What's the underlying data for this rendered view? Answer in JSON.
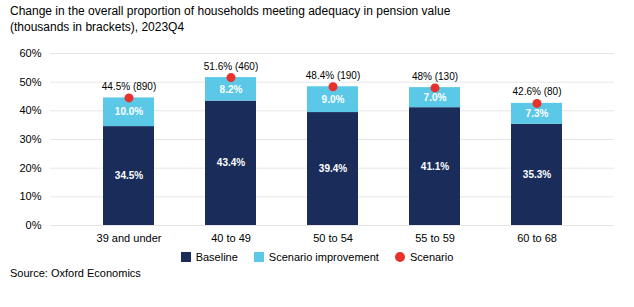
{
  "chart_data": {
    "type": "bar",
    "title": "Change in the overall proportion of households meeting adequacy in pension value\n(thousands in brackets), 2023Q4",
    "source": "Source: Oxford Economics",
    "categories": [
      "39 and under",
      "40 to 49",
      "50 to 54",
      "55 to 59",
      "60 to 68"
    ],
    "stacked": true,
    "data_labels": true,
    "series": [
      {
        "name": "Baseline",
        "type": "bar",
        "color": "#1a2d5a",
        "values": [
          34.5,
          43.4,
          39.4,
          41.1,
          35.3
        ],
        "value_labels": [
          "34.5%",
          "43.4%",
          "39.4%",
          "41.1%",
          "35.3%"
        ]
      },
      {
        "name": "Scenario improvement",
        "type": "bar",
        "color": "#5bc8e8",
        "values": [
          10.0,
          8.2,
          9.0,
          7.0,
          7.3
        ],
        "value_labels": [
          "10.0%",
          "8.2%",
          "9.0%",
          "7.0%",
          "7.3%"
        ]
      },
      {
        "name": "Scenario",
        "type": "scatter",
        "marker": "circle",
        "color": "#e8312a",
        "values": [
          44.5,
          51.6,
          48.4,
          48.0,
          42.6
        ],
        "value_labels": [
          "44.5% (890)",
          "51.6% (460)",
          "48.4% (190)",
          "48% (130)",
          "42.6% (80)"
        ]
      }
    ],
    "ylim": [
      0,
      60
    ],
    "yticks": [
      {
        "value": 0,
        "label": "0%"
      },
      {
        "value": 10,
        "label": "10%"
      },
      {
        "value": 20,
        "label": "20%"
      },
      {
        "value": 30,
        "label": "30%"
      },
      {
        "value": 40,
        "label": "40%"
      },
      {
        "value": 50,
        "label": "50%"
      },
      {
        "value": 60,
        "label": "60%"
      }
    ],
    "grid": true,
    "legend": "bottom"
  }
}
